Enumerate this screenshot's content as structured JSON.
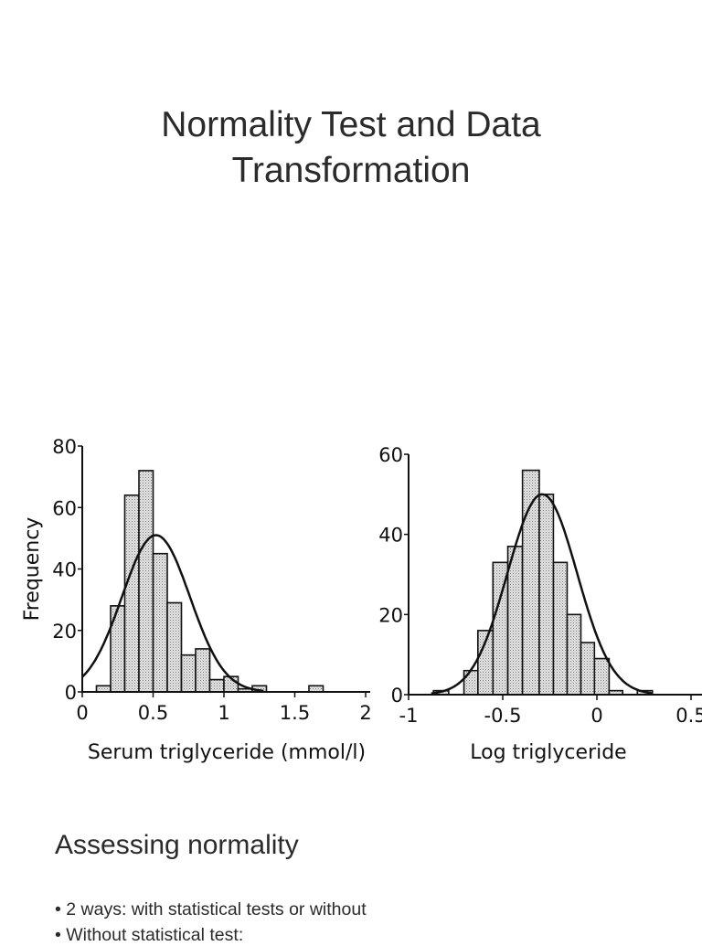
{
  "slide": {
    "title_line1": "Normality Test and Data",
    "title_line2": "Transformation",
    "subheading": "Assessing normality",
    "bullets": [
      "2 ways: with statistical tests or without",
      "Without statistical test:"
    ]
  },
  "chart_data": [
    {
      "type": "bar",
      "subtype": "histogram with fitted normal curve",
      "xlabel": "Serum triglyceride (mmol/l)",
      "ylabel": "Frequency",
      "xlim": [
        0,
        2
      ],
      "ylim": [
        0,
        80
      ],
      "xticks": [
        "0",
        "0.5",
        "1",
        "1.5",
        "2"
      ],
      "yticks": [
        "0",
        "20",
        "40",
        "60",
        "80"
      ],
      "xtick_values": [
        0,
        0.5,
        1,
        1.5,
        2
      ],
      "ytick_values": [
        0,
        20,
        40,
        60,
        80
      ],
      "bins": [
        {
          "from": 0.1,
          "to": 0.2,
          "value": 2
        },
        {
          "from": 0.2,
          "to": 0.3,
          "value": 28
        },
        {
          "from": 0.3,
          "to": 0.4,
          "value": 64
        },
        {
          "from": 0.4,
          "to": 0.5,
          "value": 72
        },
        {
          "from": 0.5,
          "to": 0.6,
          "value": 45
        },
        {
          "from": 0.6,
          "to": 0.7,
          "value": 29
        },
        {
          "from": 0.7,
          "to": 0.8,
          "value": 12
        },
        {
          "from": 0.8,
          "to": 0.9,
          "value": 14
        },
        {
          "from": 0.9,
          "to": 1.0,
          "value": 4
        },
        {
          "from": 1.0,
          "to": 1.1,
          "value": 5
        },
        {
          "from": 1.1,
          "to": 1.2,
          "value": 1
        },
        {
          "from": 1.2,
          "to": 1.3,
          "value": 2
        },
        {
          "from": 1.6,
          "to": 1.7,
          "value": 2
        }
      ],
      "normal_curve": {
        "mean": 0.52,
        "sd": 0.24,
        "peak": 51
      },
      "grid": false
    },
    {
      "type": "bar",
      "subtype": "histogram with fitted normal curve",
      "xlabel": "Log triglyceride",
      "ylabel": "",
      "xlim": [
        -1,
        0.5
      ],
      "ylim": [
        0,
        60
      ],
      "xticks": [
        "-1",
        "-0.5",
        "0",
        "0.5"
      ],
      "yticks": [
        "0",
        "20",
        "40",
        "60"
      ],
      "xtick_values": [
        -1,
        -0.5,
        0,
        0.5
      ],
      "ytick_values": [
        0,
        20,
        40,
        60
      ],
      "bins": [
        {
          "from": -0.868,
          "to": -0.787,
          "value": 1
        },
        {
          "from": -0.706,
          "to": -0.632,
          "value": 6
        },
        {
          "from": -0.632,
          "to": -0.552,
          "value": 16
        },
        {
          "from": -0.552,
          "to": -0.473,
          "value": 33
        },
        {
          "from": -0.473,
          "to": -0.395,
          "value": 37
        },
        {
          "from": -0.395,
          "to": -0.306,
          "value": 56
        },
        {
          "from": -0.306,
          "to": -0.231,
          "value": 50
        },
        {
          "from": -0.231,
          "to": -0.158,
          "value": 33
        },
        {
          "from": -0.158,
          "to": -0.085,
          "value": 20
        },
        {
          "from": -0.085,
          "to": -0.013,
          "value": 13
        },
        {
          "from": -0.013,
          "to": 0.065,
          "value": 9
        },
        {
          "from": 0.065,
          "to": 0.137,
          "value": 1
        },
        {
          "from": 0.215,
          "to": 0.295,
          "value": 1
        }
      ],
      "normal_curve": {
        "mean": -0.29,
        "sd": 0.185,
        "peak": 50
      },
      "grid": false
    }
  ],
  "colors": {
    "bar_fill": "#d4d4d4",
    "ink": "#111111",
    "text": "#2b2b2b"
  }
}
